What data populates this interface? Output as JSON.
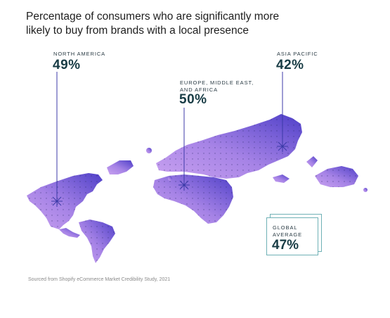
{
  "title_line1": "Percentage of consumers who are significantly more",
  "title_line2": "likely to buy from brands with a local presence",
  "regions": {
    "north_america": {
      "label": "NORTH AMERICA",
      "value": "49%"
    },
    "emea": {
      "label_line1": "EUROPE, MIDDLE EAST,",
      "label_line2": "AND AFRICA",
      "value": "50%"
    },
    "asia_pacific": {
      "label": "ASIA PACIFIC",
      "value": "42%"
    }
  },
  "global": {
    "label_line1": "GLOBAL",
    "label_line2": "AVERAGE",
    "value": "47%"
  },
  "source": "Sourced from Shopify eCommerce Market Credibility Study, 2021",
  "colors": {
    "land_light": "#b78ee9",
    "land_dark": "#5a48cc",
    "marker": "#3c3aa8",
    "box_border": "#6fb1b6",
    "value_text": "#183c45"
  }
}
